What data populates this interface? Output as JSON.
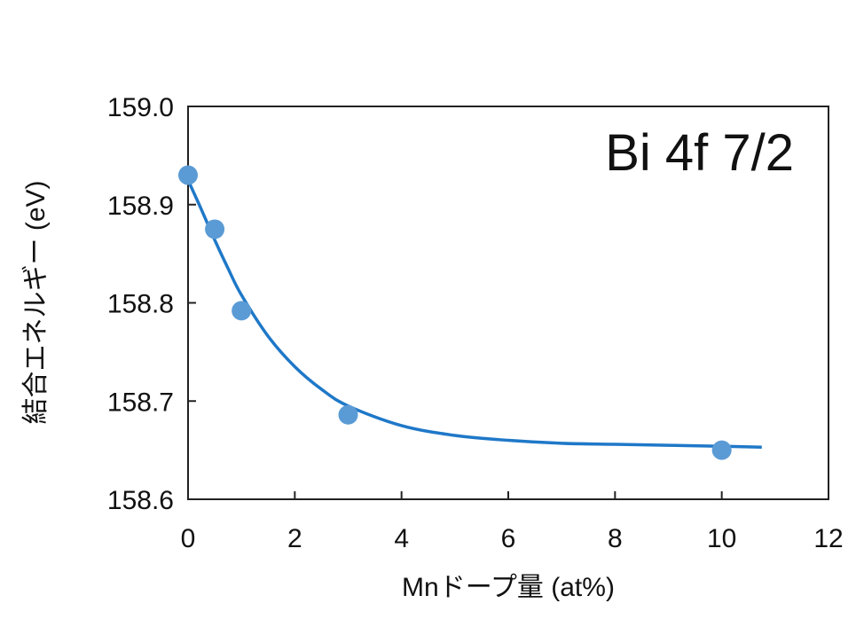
{
  "chart_data": {
    "type": "scatter",
    "xlabel": "Mnドープ量 (at%)",
    "ylabel": "結合エネルギー (eV)",
    "annotation": "Bi 4f 7/2",
    "xlim": [
      0,
      12
    ],
    "ylim": [
      158.6,
      159.0
    ],
    "x_ticks": [
      "0",
      "2",
      "4",
      "6",
      "8",
      "10",
      "12"
    ],
    "y_ticks": [
      "158.6",
      "158.7",
      "158.8",
      "158.9",
      "159.0"
    ],
    "grid": false,
    "legend": "none",
    "series": [
      {
        "kind": "points",
        "color": "#5b9bd5",
        "x": [
          0,
          0.5,
          1,
          3,
          10
        ],
        "y": [
          158.93,
          158.875,
          158.792,
          158.686,
          158.65
        ]
      },
      {
        "kind": "fit-curve",
        "color": "#1f78c8",
        "x": [
          0,
          0.25,
          0.5,
          0.75,
          1,
          1.5,
          2,
          2.5,
          3,
          4,
          5,
          6,
          7,
          8,
          9,
          10,
          10.75
        ],
        "y": [
          158.925,
          158.895,
          158.864,
          158.835,
          158.808,
          158.766,
          158.735,
          158.712,
          158.695,
          158.675,
          158.665,
          158.66,
          158.657,
          158.656,
          158.655,
          158.654,
          158.653
        ]
      }
    ]
  }
}
